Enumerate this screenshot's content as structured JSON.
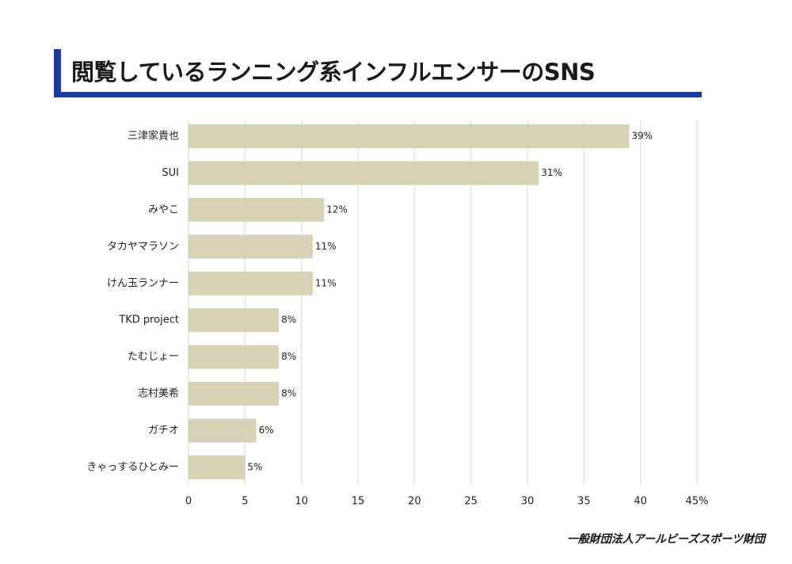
{
  "header": {
    "title": "閲覧しているランニング系インフルエンサーのSNS"
  },
  "footer": {
    "source": "一般財団法人アールビーズスポーツ財団"
  },
  "colors": {
    "accent": "#1f3c9a",
    "bar": "#d6d2b5",
    "grid": "#e2e2e2"
  },
  "chart_data": {
    "type": "bar",
    "orientation": "horizontal",
    "title": "閲覧しているランニング系インフルエンサーのSNS",
    "categories": [
      "三津家貴也",
      "SUI",
      "みやこ",
      "タカヤマラソン",
      "けん玉ランナー",
      "TKD project",
      "たむじょー",
      "志村美希",
      "ガチオ",
      "きゃっするひとみー"
    ],
    "values": [
      39,
      31,
      12,
      11,
      11,
      8,
      8,
      8,
      6,
      5
    ],
    "value_labels": [
      "39%",
      "31%",
      "12%",
      "11%",
      "11%",
      "8%",
      "8%",
      "8%",
      "6%",
      "5%"
    ],
    "xlim": [
      0,
      45
    ],
    "xticks": [
      "0",
      "5",
      "10",
      "15",
      "20",
      "25",
      "30",
      "35",
      "40",
      "45%"
    ],
    "xlabel": "",
    "ylabel": "",
    "grid": "vertical",
    "legend": "none"
  }
}
